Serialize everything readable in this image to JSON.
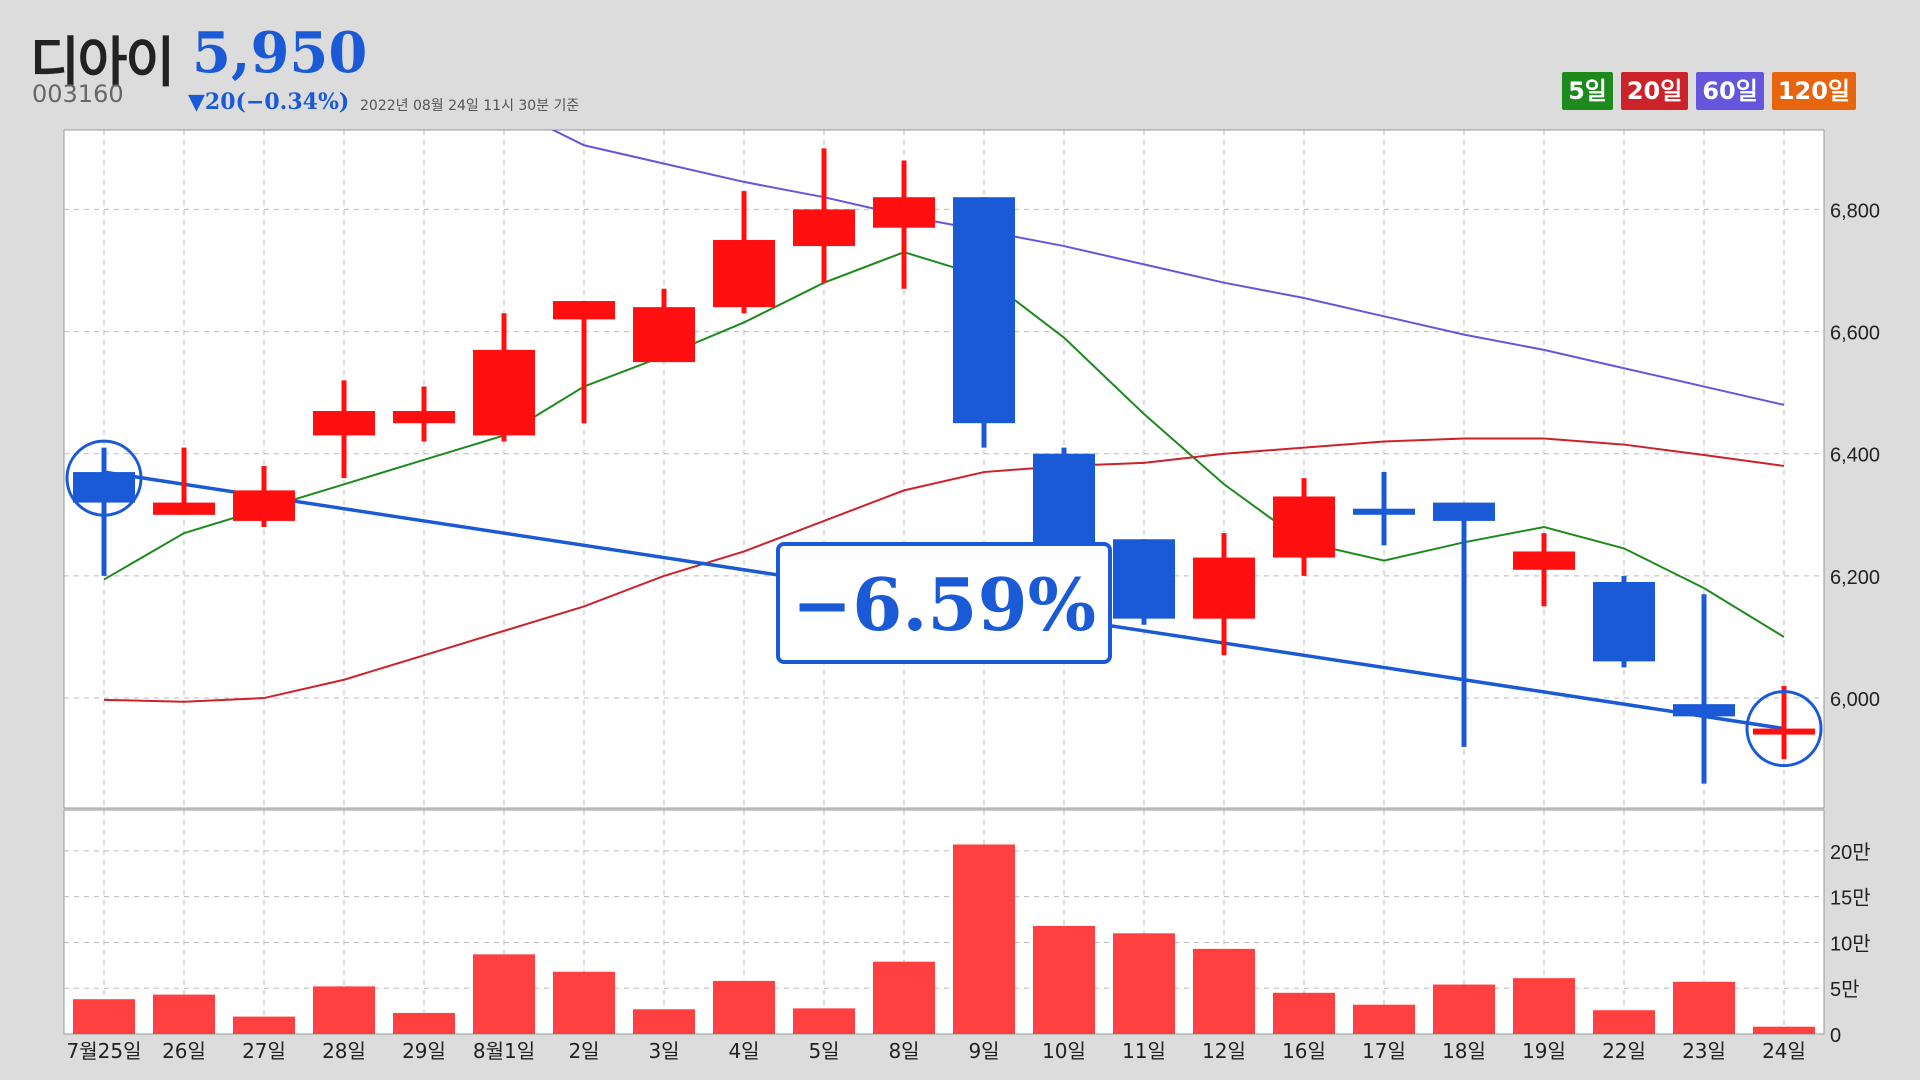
{
  "stock": {
    "name": "디아이",
    "code": "003160",
    "price": "5,950",
    "change": "▼20(−0.34%)",
    "timestamp": "2022년 08월 24일 11시 30분 기준"
  },
  "legend": [
    {
      "label": "5일",
      "color": "#1e8a1e"
    },
    {
      "label": "20일",
      "color": "#cc2229"
    },
    {
      "label": "60일",
      "color": "#6655dd"
    },
    {
      "label": "120일",
      "color": "#e8650f"
    }
  ],
  "annotation": {
    "text": "−6.59%"
  },
  "chart_data": {
    "type": "candlestick",
    "categories": [
      "7월25일",
      "26일",
      "27일",
      "28일",
      "29일",
      "8월1일",
      "2일",
      "3일",
      "4일",
      "5일",
      "8일",
      "9일",
      "10일",
      "11일",
      "12일",
      "16일",
      "17일",
      "18일",
      "19일",
      "22일",
      "23일",
      "24일"
    ],
    "ohlc": [
      [
        6370,
        6410,
        6200,
        6320
      ],
      [
        6300,
        6410,
        6300,
        6320
      ],
      [
        6290,
        6380,
        6280,
        6340
      ],
      [
        6430,
        6520,
        6360,
        6470
      ],
      [
        6450,
        6510,
        6420,
        6470
      ],
      [
        6430,
        6630,
        6420,
        6570
      ],
      [
        6620,
        6650,
        6450,
        6650
      ],
      [
        6550,
        6670,
        6550,
        6640
      ],
      [
        6640,
        6830,
        6630,
        6750
      ],
      [
        6740,
        6900,
        6680,
        6800
      ],
      [
        6770,
        6880,
        6670,
        6820
      ],
      [
        6820,
        6820,
        6410,
        6450
      ],
      [
        6400,
        6410,
        6180,
        6220
      ],
      [
        6260,
        6260,
        6120,
        6130
      ],
      [
        6130,
        6270,
        6070,
        6230
      ],
      [
        6230,
        6360,
        6200,
        6330
      ],
      [
        6310,
        6370,
        6250,
        6300
      ],
      [
        6320,
        6320,
        5920,
        6290
      ],
      [
        6210,
        6270,
        6150,
        6240
      ],
      [
        6190,
        6200,
        6050,
        6060
      ],
      [
        5990,
        6170,
        5860,
        5970
      ],
      [
        5950,
        6020,
        5900,
        5950
      ]
    ],
    "moving_averages": [
      {
        "name": "5일",
        "color": "#1e8a1e",
        "values": [
          6194,
          6270,
          6310,
          6350,
          6390,
          6430,
          6510,
          6560,
          6615,
          6680,
          6730,
          6690,
          6590,
          6465,
          6350,
          6255,
          6225,
          6255,
          6280,
          6245,
          6180,
          6100
        ]
      },
      {
        "name": "20일",
        "color": "#cc2229",
        "values": [
          5997,
          5994,
          6000,
          6030,
          6070,
          6110,
          6150,
          6200,
          6240,
          6290,
          6340,
          6370,
          6380,
          6385,
          6400,
          6410,
          6420,
          6425,
          6425,
          6415,
          6398,
          6380
        ]
      },
      {
        "name": "60일",
        "color": "#6655dd",
        "values": [
          null,
          null,
          null,
          null,
          null,
          6970,
          6905,
          6875,
          6845,
          6820,
          6790,
          6765,
          6740,
          6710,
          6680,
          6655,
          6625,
          6595,
          6570,
          6540,
          6510,
          6480
        ]
      }
    ],
    "trendline": {
      "from": {
        "category": "7월25일",
        "value": 6370
      },
      "to": {
        "category": "24일",
        "value": 5950
      }
    },
    "price_axis": {
      "ticks": [
        6000,
        6200,
        6400,
        6600,
        6800
      ],
      "tick_labels": [
        "6,000",
        "6,200",
        "6,400",
        "6,600",
        "6,800"
      ],
      "range": [
        5820,
        6930
      ]
    },
    "volume": {
      "values": [
        38000,
        43000,
        19000,
        52000,
        23000,
        87000,
        68000,
        27000,
        58000,
        28000,
        79000,
        207000,
        118000,
        110000,
        93000,
        45000,
        32000,
        54000,
        61000,
        26000,
        57000,
        8000
      ],
      "ticks": [
        0,
        50000,
        100000,
        150000,
        200000
      ],
      "tick_labels": [
        "0",
        "5만",
        "10만",
        "15만",
        "20만"
      ],
      "range": [
        0,
        225000
      ],
      "color": "#ff4040"
    },
    "up_color": "#ff0f0f",
    "down_color": "#1a5ad6",
    "grid": true
  }
}
